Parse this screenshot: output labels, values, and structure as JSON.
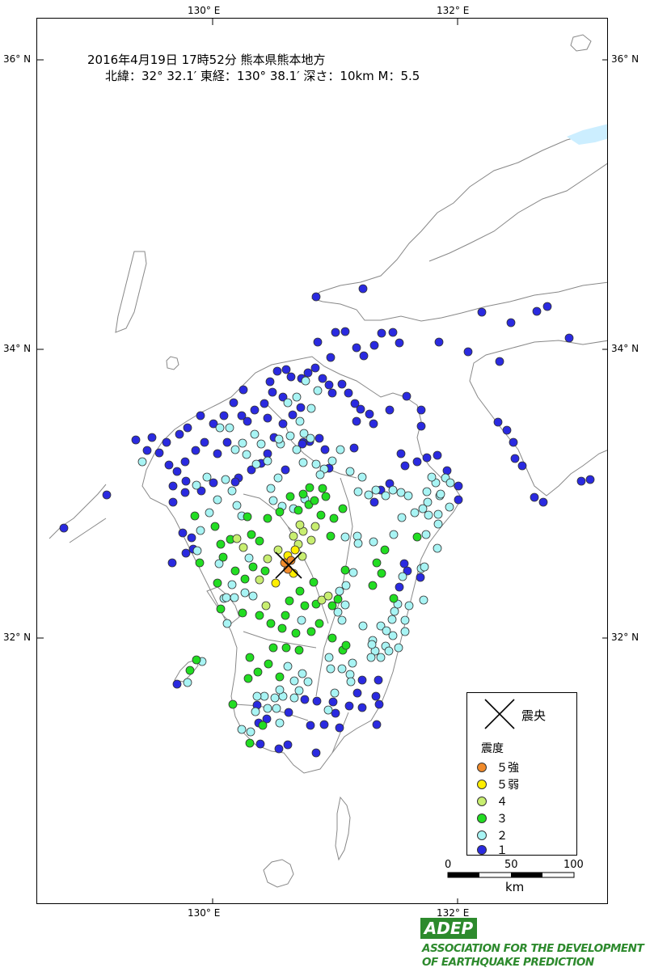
{
  "title": {
    "line1": "2016年4月19日 17時52分  熊本県熊本地方",
    "line2": "北緯：32° 32.1′ 東経：130° 38.1′ 深さ：10km  M：5.5"
  },
  "axis_labels": {
    "lon_130": "130° E",
    "lon_132": "132° E",
    "lat_36": "36° N",
    "lat_34": "34° N",
    "lat_32": "32° N"
  },
  "legend": {
    "epicenter_label": "震央",
    "intensity_heading": "震度",
    "items": [
      {
        "label": "５強",
        "color": "#f08a2a"
      },
      {
        "label": "５弱",
        "color": "#ffee00"
      },
      {
        "label": "４",
        "color": "#c8ee70"
      },
      {
        "label": "３",
        "color": "#22dd22"
      },
      {
        "label": "２",
        "color": "#a8f4f4"
      },
      {
        "label": "１",
        "color": "#2a2ae0"
      }
    ]
  },
  "scale_bar": {
    "t0": "0",
    "t50": "50",
    "t100": "100",
    "unit": "km"
  },
  "credit": {
    "logo": "ADEP",
    "line1": "ASSOCIATION  FOR THE DEVELOPMENT",
    "line2": "OF EARTHQUAKE PREDICTION"
  },
  "colors": {
    "s5p": "#f08a2a",
    "s5m": "#ffee00",
    "s4": "#c8ee70",
    "s3": "#22dd22",
    "s2": "#a8f4f4",
    "s1": "#2a2ae0",
    "coast": "#888888",
    "water": "#cceeff"
  }
}
